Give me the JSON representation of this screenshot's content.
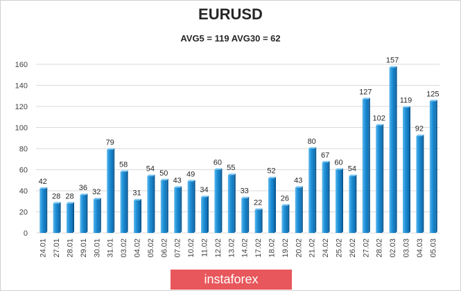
{
  "chart_data": {
    "type": "bar",
    "title": "EURUSD",
    "subtitle": "AVG5 = 119 AVG30 = 62",
    "categories": [
      "24.01",
      "27.01",
      "28.01",
      "29.01",
      "30.01",
      "31.01",
      "03.02",
      "04.02",
      "05.02",
      "06.02",
      "07.02",
      "10.02",
      "11.02",
      "12.02",
      "13.02",
      "14.02",
      "17.02",
      "18.02",
      "19.02",
      "20.02",
      "21.02",
      "24.02",
      "25.02",
      "26.02",
      "27.02",
      "28.02",
      "02.03",
      "03.03",
      "04.03",
      "05.03"
    ],
    "values": [
      42,
      28,
      28,
      36,
      32,
      79,
      58,
      31,
      54,
      50,
      43,
      49,
      34,
      60,
      55,
      33,
      22,
      52,
      26,
      43,
      80,
      67,
      60,
      54,
      127,
      102,
      157,
      119,
      92,
      125
    ],
    "ylim": [
      0,
      160
    ],
    "yticks": [
      "0",
      "20",
      "40",
      "60",
      "80",
      "100",
      "120",
      "140",
      "160"
    ],
    "grid": true,
    "xlabel": "",
    "ylabel": "",
    "bar_color": "#1f8fd6"
  },
  "banner": {
    "text": "instaforex",
    "color": "#e8575b"
  }
}
